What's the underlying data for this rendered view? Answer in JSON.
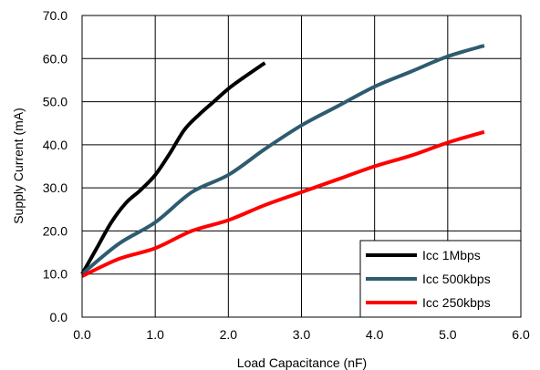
{
  "chart_data": {
    "type": "line",
    "xlabel": "Load Capacitance (nF)",
    "ylabel": "Supply Current (mA)",
    "xlim": [
      0,
      6
    ],
    "ylim": [
      0,
      70
    ],
    "x_ticks": [
      "0.0",
      "1.0",
      "2.0",
      "3.0",
      "4.0",
      "5.0",
      "6.0"
    ],
    "y_ticks": [
      "0.0",
      "10.0",
      "20.0",
      "30.0",
      "40.0",
      "50.0",
      "60.0",
      "70.0"
    ],
    "grid": true,
    "legend_position": "bottom-right",
    "series": [
      {
        "name": "Icc 1Mbps",
        "color": "#000000",
        "x": [
          0,
          0.2,
          0.4,
          0.6,
          0.8,
          1.0,
          1.2,
          1.4,
          1.6,
          1.8,
          2.0,
          2.2,
          2.5
        ],
        "y": [
          10,
          16,
          22,
          26.5,
          29.5,
          33,
          38,
          43.5,
          47,
          50,
          53,
          55.5,
          59
        ]
      },
      {
        "name": "Icc 500kbps",
        "color": "#2e5b70",
        "x": [
          0,
          0.5,
          1.0,
          1.5,
          2.0,
          2.5,
          3.0,
          3.5,
          4.0,
          4.5,
          5.0,
          5.5
        ],
        "y": [
          10,
          17,
          22,
          29,
          33,
          39,
          44.5,
          49,
          53.5,
          57,
          60.5,
          63
        ]
      },
      {
        "name": "Icc 250kbps",
        "color": "#ff0000",
        "x": [
          0,
          0.5,
          1.0,
          1.5,
          2.0,
          2.5,
          3.0,
          3.5,
          4.0,
          4.5,
          5.0,
          5.5
        ],
        "y": [
          9.5,
          13.5,
          16,
          20,
          22.5,
          26,
          29,
          32,
          35,
          37.5,
          40.5,
          43
        ]
      }
    ]
  }
}
